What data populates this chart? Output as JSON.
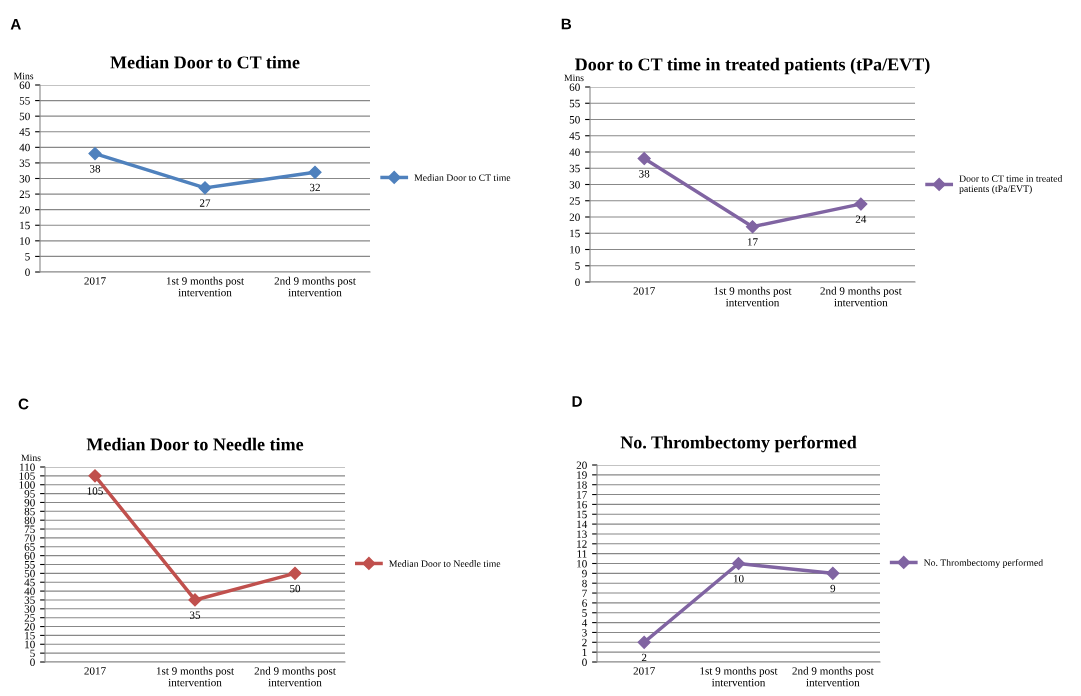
{
  "chart_data": [
    {
      "type": "line",
      "title": "Median Door to CT time",
      "ylabel": "Mins",
      "annotations": [
        "A"
      ],
      "categories": [
        "2017",
        "1st 9 months post\nintervention",
        "2nd 9 months post\nintervention"
      ],
      "series": [
        {
          "name": "Median Door to CT time",
          "color": "#4f81bd",
          "values": [
            38,
            27,
            32
          ]
        }
      ],
      "ylim": [
        0,
        60
      ],
      "yticks": [
        0,
        5,
        10,
        15,
        20,
        25,
        30,
        35,
        40,
        45,
        50,
        55,
        60
      ],
      "grid": "y",
      "legend": "right",
      "marker": "diamond",
      "data_labels": true
    },
    {
      "type": "line",
      "title": "Door to CT time in treated patients (tPa/EVT)",
      "ylabel": "Mins",
      "annotations": [
        "B"
      ],
      "categories": [
        "2017",
        "1st 9 months post\nintervention",
        "2nd 9 months post\nintervention"
      ],
      "series": [
        {
          "name": "Door to CT time in treated\npatients (tPa/EVT)",
          "color": "#8064a2",
          "values": [
            38,
            17,
            24
          ]
        }
      ],
      "ylim": [
        0,
        60
      ],
      "yticks": [
        0,
        5,
        10,
        15,
        20,
        25,
        30,
        35,
        40,
        45,
        50,
        55,
        60
      ],
      "grid": "y",
      "legend": "right",
      "marker": "diamond",
      "data_labels": true
    },
    {
      "type": "line",
      "title": "Median Door to Needle time",
      "ylabel": "Mins",
      "annotations": [
        "C"
      ],
      "categories": [
        "2017",
        "1st 9 months post\nintervention",
        "2nd 9 months post\nintervention"
      ],
      "series": [
        {
          "name": "Median Door to Needle time",
          "color": "#c0504d",
          "values": [
            105,
            35,
            50
          ]
        }
      ],
      "ylim": [
        0,
        110
      ],
      "yticks": [
        0,
        5,
        10,
        15,
        20,
        25,
        30,
        35,
        40,
        45,
        50,
        55,
        60,
        65,
        70,
        75,
        80,
        85,
        90,
        95,
        100,
        105,
        110
      ],
      "grid": "y",
      "legend": "right",
      "marker": "diamond",
      "data_labels": true
    },
    {
      "type": "line",
      "title": "No. Thrombectomy performed",
      "annotations": [
        "D"
      ],
      "categories": [
        "2017",
        "1st 9 months post\nintervention",
        "2nd 9 months post\nintervention"
      ],
      "series": [
        {
          "name": "No. Thrombectomy performed",
          "color": "#8064a2",
          "values": [
            2,
            10,
            9
          ]
        }
      ],
      "ylim": [
        0,
        20
      ],
      "yticks": [
        0,
        1,
        2,
        3,
        4,
        5,
        6,
        7,
        8,
        9,
        10,
        11,
        12,
        13,
        14,
        15,
        16,
        17,
        18,
        19,
        20
      ],
      "grid": "y",
      "legend": "right",
      "marker": "diamond",
      "data_labels": true
    }
  ]
}
